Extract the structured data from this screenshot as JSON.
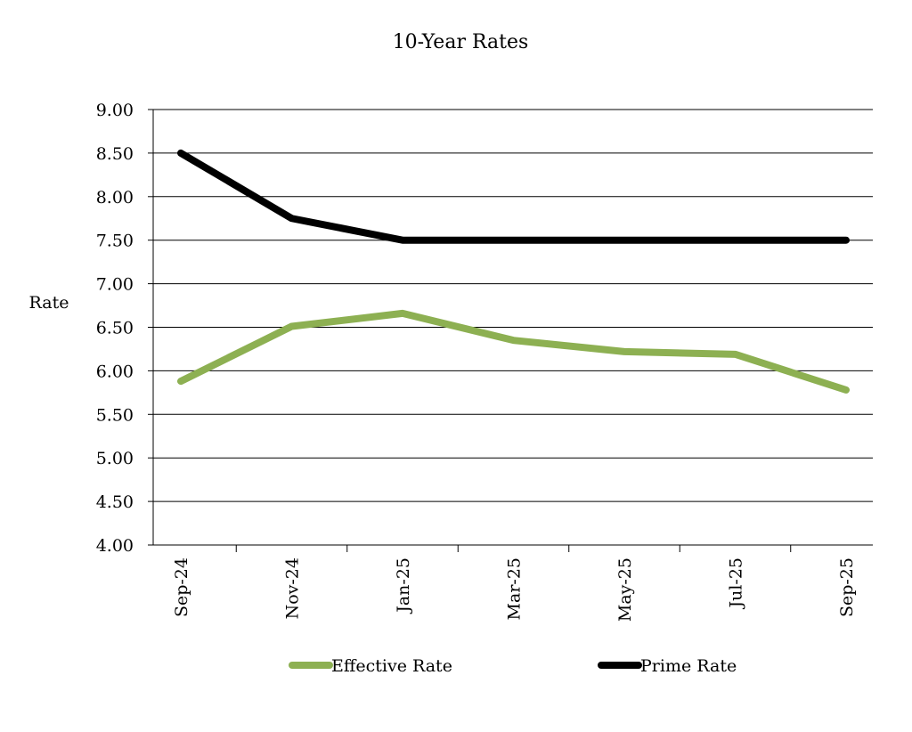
{
  "chart_data": {
    "type": "line",
    "title": "10-Year Rates",
    "xlabel": "",
    "ylabel": "Rate",
    "categories": [
      "Sep-24",
      "Nov-24",
      "Jan-25",
      "Mar-25",
      "May-25",
      "Jul-25",
      "Sep-25"
    ],
    "ylim": [
      4.0,
      9.0
    ],
    "yticks": [
      "4.00",
      "4.50",
      "5.00",
      "5.50",
      "6.00",
      "6.50",
      "7.00",
      "7.50",
      "8.00",
      "8.50",
      "9.00"
    ],
    "grid": true,
    "legend_position": "bottom",
    "series": [
      {
        "name": "Effective Rate",
        "color": "#8db052",
        "values": [
          5.88,
          6.51,
          6.66,
          6.35,
          6.22,
          6.19,
          5.78
        ]
      },
      {
        "name": "Prime Rate",
        "color": "#000000",
        "values": [
          8.5,
          7.75,
          7.5,
          7.5,
          7.5,
          7.5,
          7.5
        ]
      }
    ]
  }
}
